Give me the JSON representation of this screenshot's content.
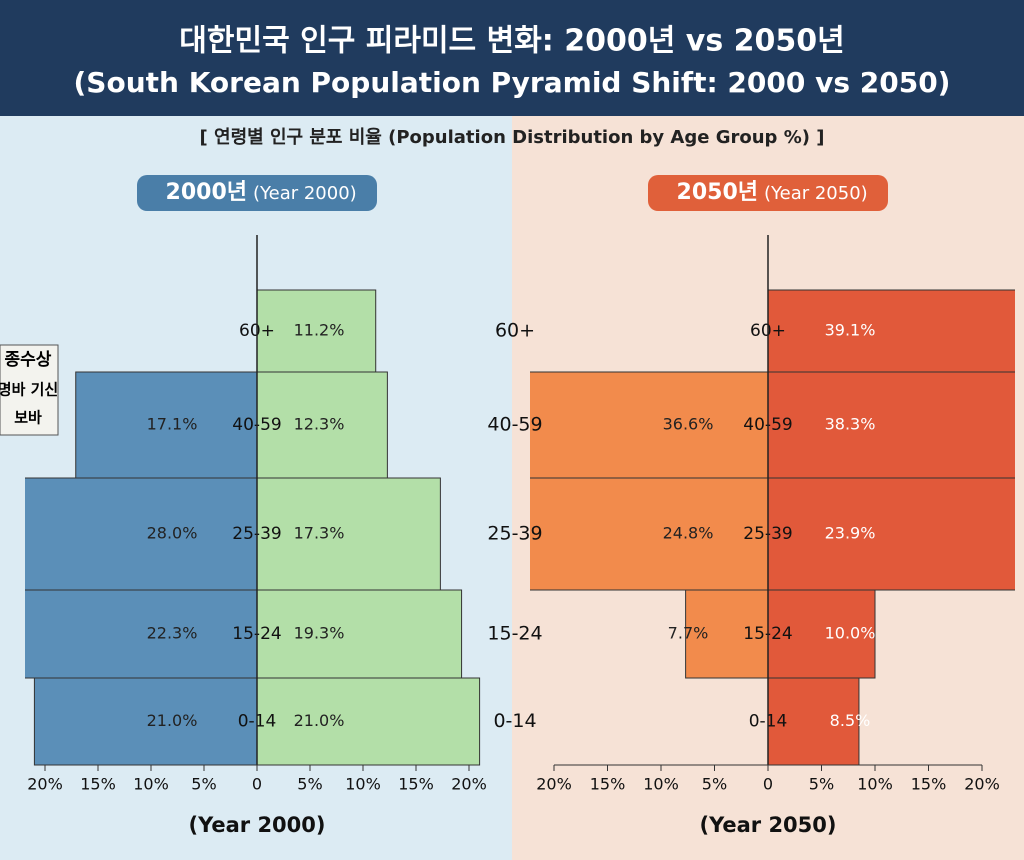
{
  "title": "대한민국 인구 피라미드 변화: 2000년 vs 2050년",
  "subtitle": "(South Korean Population Pyramid Shift: 2000 vs 2050)",
  "section_label": "[ 연령별 인구 분포 비율 (Population Distribution by Age Group %) ]",
  "background_sign": [
    "종수상",
    "명바 기신",
    "보바"
  ],
  "chart_data": [
    {
      "type": "pyramid",
      "badge": "2000년",
      "badge_note": "(Year 2000)",
      "xlabel": "(Year 2000)",
      "categories": [
        "0-14",
        "15-24",
        "25-39",
        "40-59",
        "60+"
      ],
      "series": [
        {
          "color": "#5b8fb8",
          "values": [
            21.0,
            22.3,
            28.0,
            17.1,
            null
          ],
          "value_labels": [
            "21.0%",
            "22.3%",
            "28.0%",
            "17.1%",
            null
          ]
        },
        {
          "color": "#b3dfa8",
          "values": [
            21.0,
            19.3,
            17.3,
            12.3,
            11.2
          ],
          "value_labels": [
            "21.0%",
            "19.3%",
            "17.3%",
            "12.3%",
            "11.2%"
          ]
        }
      ],
      "xlim": [
        -20,
        20
      ],
      "xticks": [
        {
          "value": -20,
          "label": "20%"
        },
        {
          "value": -15,
          "label": "15%"
        },
        {
          "value": -10,
          "label": "10%"
        },
        {
          "value": -5,
          "label": "5%"
        },
        0,
        {
          "value": 5,
          "label": "5%"
        },
        {
          "value": 10,
          "label": "10%"
        },
        {
          "value": 15,
          "label": "15%"
        },
        {
          "value": 20,
          "label": "20%"
        }
      ]
    },
    {
      "type": "pyramid",
      "badge": "2050년",
      "badge_note": "(Year 2050)",
      "xlabel": "(Year 2050)",
      "categories": [
        "0-14",
        "15-24",
        "25-39",
        "40-59",
        "60+"
      ],
      "series": [
        {
          "color": "#f28b4c",
          "values": [
            null,
            7.7,
            24.8,
            36.6,
            null
          ],
          "value_labels": [
            null,
            "7.7%",
            "24.8%",
            "36.6%",
            null
          ]
        },
        {
          "color": "#e1593a",
          "values": [
            8.5,
            10.0,
            23.9,
            38.3,
            39.1
          ],
          "value_labels": [
            "8.5%",
            "10.0%",
            "23.9%",
            "38.3%",
            "39.1%"
          ]
        }
      ],
      "xlim": [
        -20,
        20
      ],
      "xticks": [
        {
          "value": -20,
          "label": "20%"
        },
        {
          "value": -15,
          "label": "15%"
        },
        {
          "value": -10,
          "label": "10%"
        },
        {
          "value": -5,
          "label": "5%"
        },
        0,
        {
          "value": 5,
          "label": "5%"
        },
        {
          "value": 10,
          "label": "10%"
        },
        {
          "value": 15,
          "label": "15%"
        },
        {
          "value": 20,
          "label": "20%"
        }
      ]
    }
  ]
}
